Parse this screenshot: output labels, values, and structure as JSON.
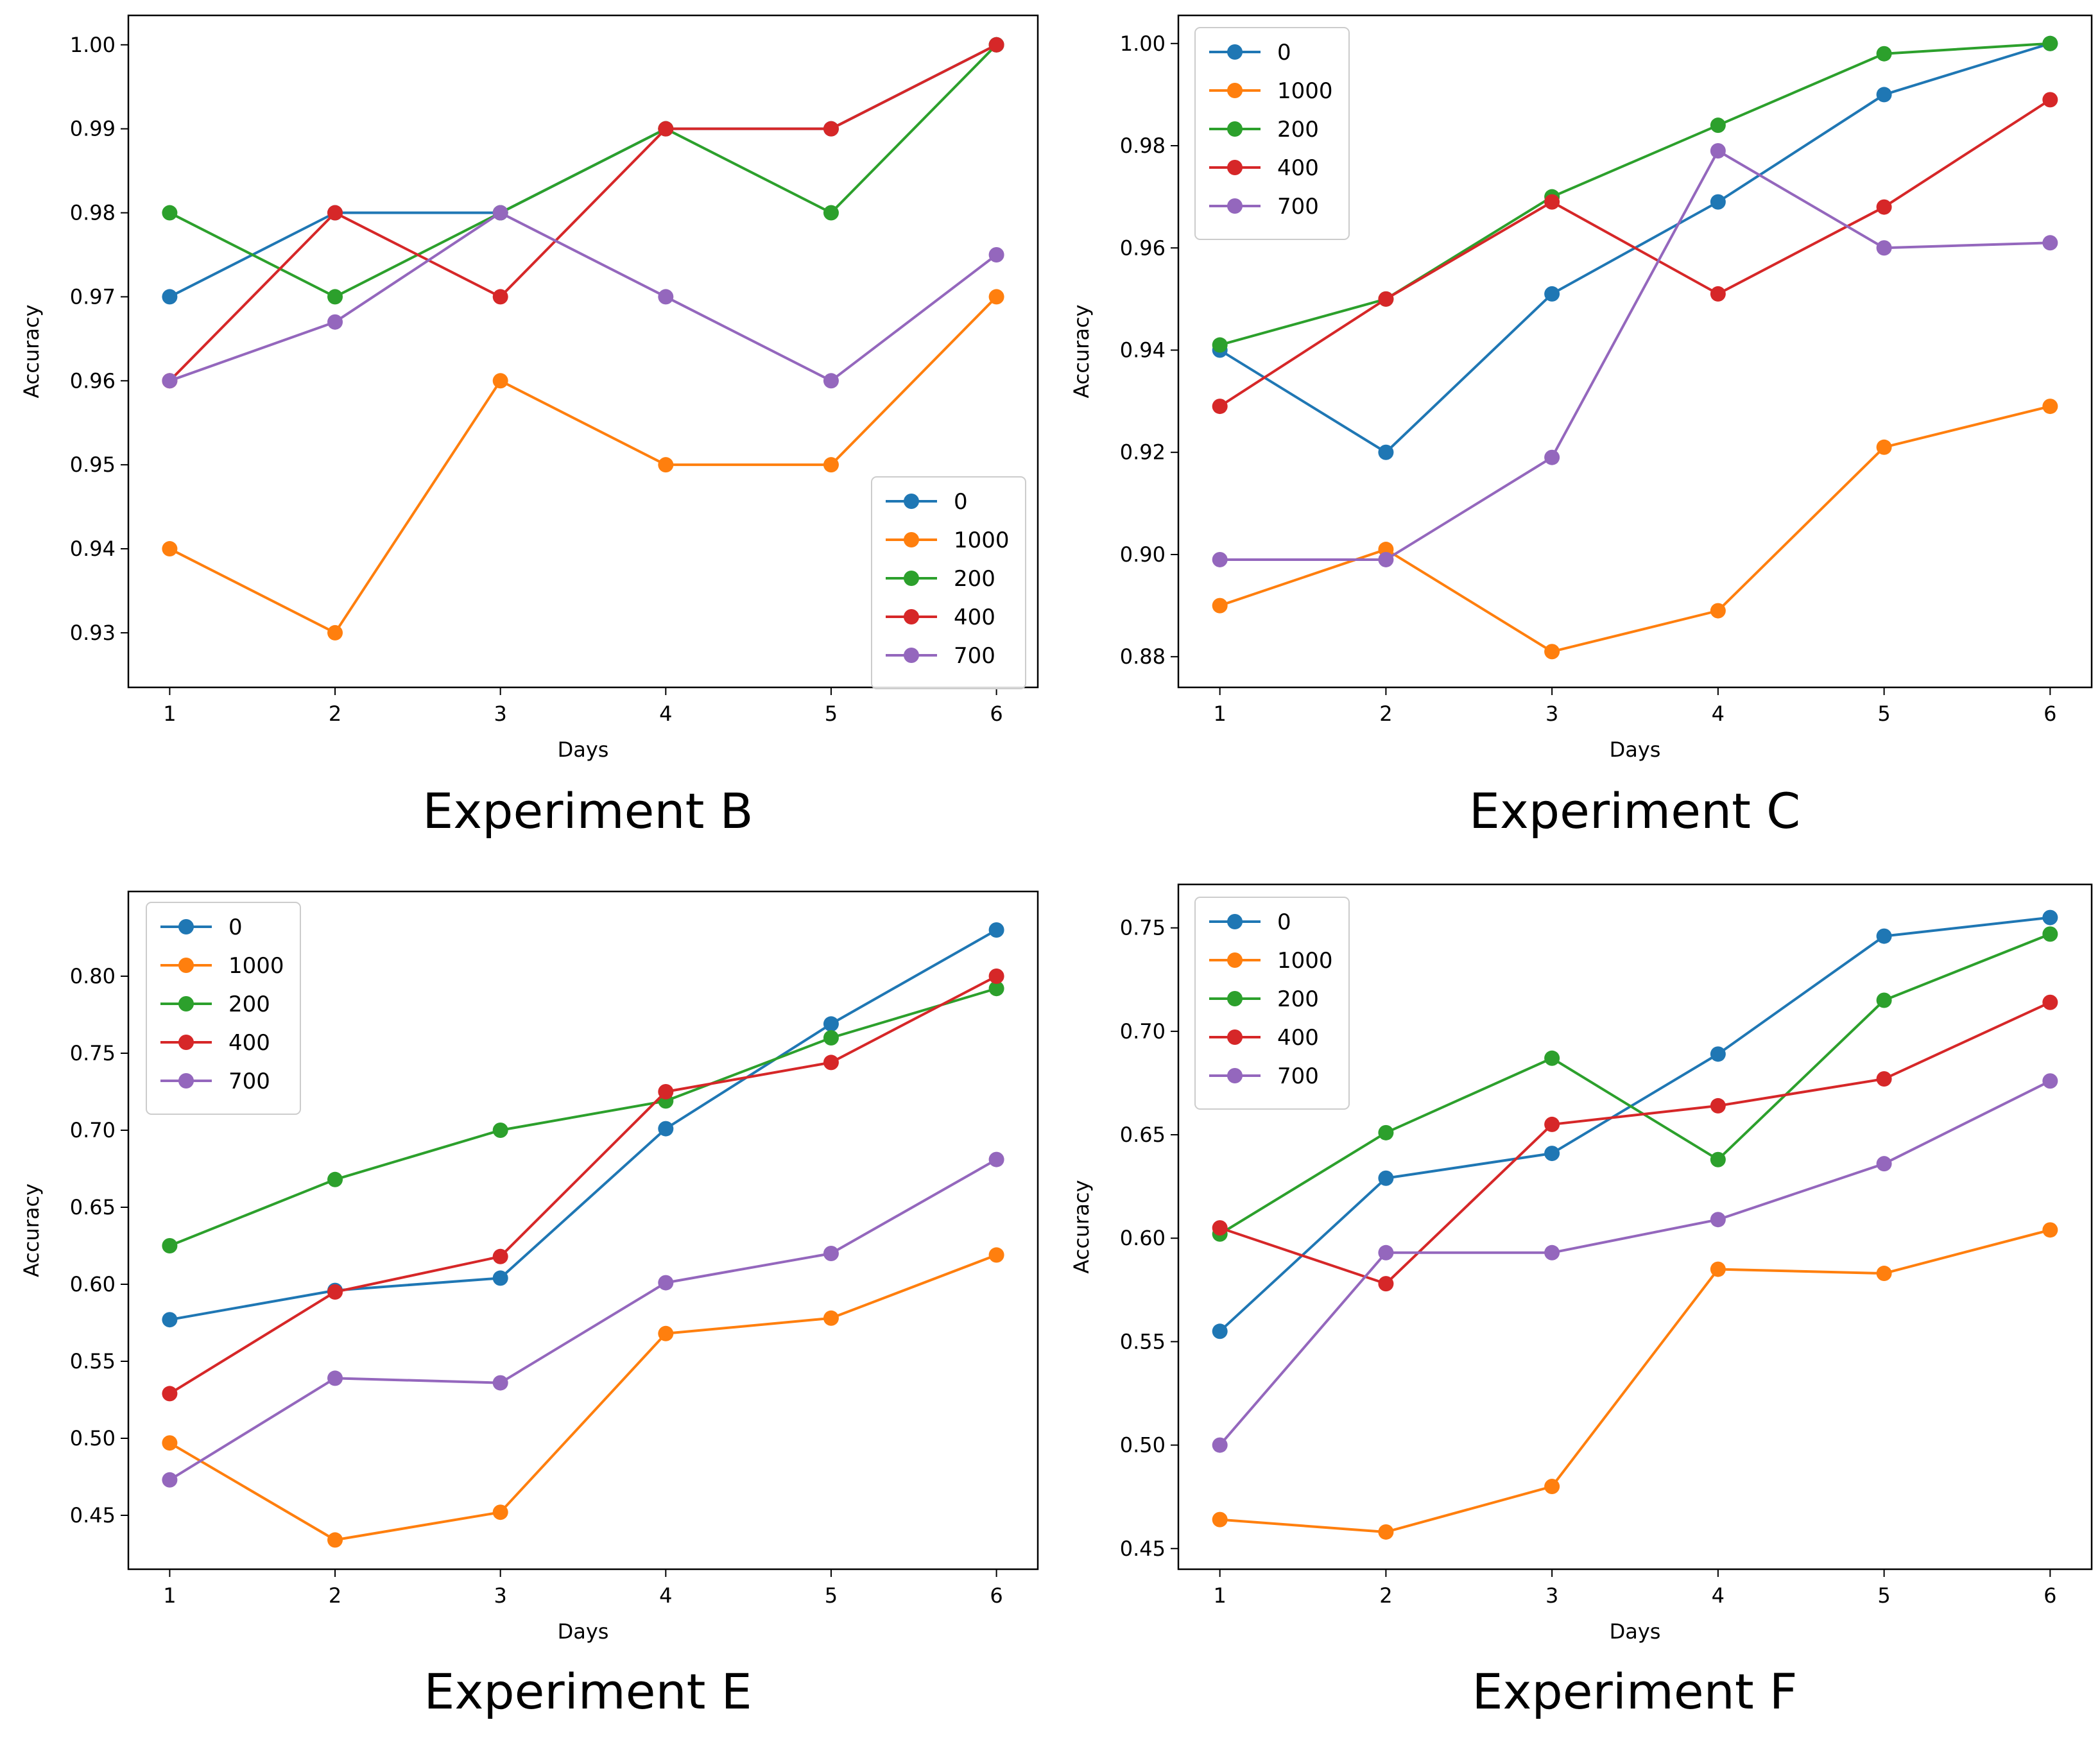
{
  "series_colors": {
    "0": "#1f77b4",
    "1000": "#ff7f0e",
    "200": "#2ca02c",
    "400": "#d62728",
    "700": "#9467bd"
  },
  "chart_data": [
    {
      "type": "line",
      "caption": "Experiment B",
      "xlabel": "Days",
      "ylabel": "Accuracy",
      "x": [
        1,
        2,
        3,
        4,
        5,
        6
      ],
      "xlim": [
        0.75,
        6.25
      ],
      "ylim": [
        0.9235,
        1.0035
      ],
      "yticks": [
        "0.93",
        "0.94",
        "0.95",
        "0.96",
        "0.97",
        "0.98",
        "0.99",
        "1.00"
      ],
      "ytick_values": [
        0.93,
        0.94,
        0.95,
        0.96,
        0.97,
        0.98,
        0.99,
        1.0
      ],
      "legend_position": "lower-right",
      "series": [
        {
          "name": "0",
          "values": [
            0.97,
            0.98,
            0.98,
            0.99,
            0.99,
            1.0
          ]
        },
        {
          "name": "1000",
          "values": [
            0.94,
            0.93,
            0.96,
            0.95,
            0.95,
            0.97
          ]
        },
        {
          "name": "200",
          "values": [
            0.98,
            0.97,
            0.98,
            0.99,
            0.98,
            1.0
          ]
        },
        {
          "name": "400",
          "values": [
            0.96,
            0.98,
            0.97,
            0.99,
            0.99,
            1.0
          ]
        },
        {
          "name": "700",
          "values": [
            0.96,
            0.967,
            0.98,
            0.97,
            0.96,
            0.975
          ]
        }
      ]
    },
    {
      "type": "line",
      "caption": "Experiment C",
      "xlabel": "Days",
      "ylabel": "Accuracy",
      "x": [
        1,
        2,
        3,
        4,
        5,
        6
      ],
      "xlim": [
        0.75,
        6.25
      ],
      "ylim": [
        0.874,
        1.0055
      ],
      "yticks": [
        "0.88",
        "0.90",
        "0.92",
        "0.94",
        "0.96",
        "0.98",
        "1.00"
      ],
      "ytick_values": [
        0.88,
        0.9,
        0.92,
        0.94,
        0.96,
        0.98,
        1.0
      ],
      "legend_position": "upper-left",
      "series": [
        {
          "name": "0",
          "values": [
            0.94,
            0.92,
            0.951,
            0.969,
            0.99,
            1.0
          ]
        },
        {
          "name": "1000",
          "values": [
            0.89,
            0.901,
            0.881,
            0.889,
            0.921,
            0.929
          ]
        },
        {
          "name": "200",
          "values": [
            0.941,
            0.95,
            0.97,
            0.984,
            0.998,
            1.0
          ]
        },
        {
          "name": "400",
          "values": [
            0.929,
            0.95,
            0.969,
            0.951,
            0.968,
            0.989
          ]
        },
        {
          "name": "700",
          "values": [
            0.899,
            0.899,
            0.919,
            0.979,
            0.96,
            0.961
          ]
        }
      ]
    },
    {
      "type": "line",
      "caption": "Experiment E",
      "xlabel": "Days",
      "ylabel": "Accuracy",
      "x": [
        1,
        2,
        3,
        4,
        5,
        6
      ],
      "xlim": [
        0.75,
        6.25
      ],
      "ylim": [
        0.415,
        0.855
      ],
      "yticks": [
        "0.45",
        "0.50",
        "0.55",
        "0.60",
        "0.65",
        "0.70",
        "0.75",
        "0.80"
      ],
      "ytick_values": [
        0.45,
        0.5,
        0.55,
        0.6,
        0.65,
        0.7,
        0.75,
        0.8
      ],
      "legend_position": "upper-left",
      "series": [
        {
          "name": "0",
          "values": [
            0.577,
            0.596,
            0.604,
            0.701,
            0.769,
            0.83
          ]
        },
        {
          "name": "1000",
          "values": [
            0.497,
            0.434,
            0.452,
            0.568,
            0.578,
            0.619
          ]
        },
        {
          "name": "200",
          "values": [
            0.625,
            0.668,
            0.7,
            0.719,
            0.76,
            0.792
          ]
        },
        {
          "name": "400",
          "values": [
            0.529,
            0.595,
            0.618,
            0.725,
            0.744,
            0.8
          ]
        },
        {
          "name": "700",
          "values": [
            0.473,
            0.539,
            0.536,
            0.601,
            0.62,
            0.681
          ]
        }
      ]
    },
    {
      "type": "line",
      "caption": "Experiment F",
      "xlabel": "Days",
      "ylabel": "Accuracy",
      "x": [
        1,
        2,
        3,
        4,
        5,
        6
      ],
      "xlim": [
        0.75,
        6.25
      ],
      "ylim": [
        0.44,
        0.771
      ],
      "yticks": [
        "0.45",
        "0.50",
        "0.55",
        "0.60",
        "0.65",
        "0.70",
        "0.75"
      ],
      "ytick_values": [
        0.45,
        0.5,
        0.55,
        0.6,
        0.65,
        0.7,
        0.75
      ],
      "legend_position": "upper-left",
      "series": [
        {
          "name": "0",
          "values": [
            0.555,
            0.629,
            0.641,
            0.689,
            0.746,
            0.755
          ]
        },
        {
          "name": "1000",
          "values": [
            0.464,
            0.458,
            0.48,
            0.585,
            0.583,
            0.604
          ]
        },
        {
          "name": "200",
          "values": [
            0.602,
            0.651,
            0.687,
            0.638,
            0.715,
            0.747
          ]
        },
        {
          "name": "400",
          "values": [
            0.605,
            0.578,
            0.655,
            0.664,
            0.677,
            0.714
          ]
        },
        {
          "name": "700",
          "values": [
            0.5,
            0.593,
            0.593,
            0.609,
            0.636,
            0.676
          ]
        }
      ]
    }
  ]
}
